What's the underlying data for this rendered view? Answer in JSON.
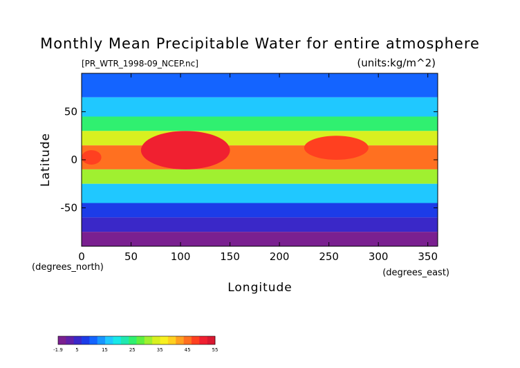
{
  "chart_data": {
    "type": "heatmap",
    "title": "Monthly Mean Precipitable Water for entire atmosphere",
    "subtitle_left": "[PR_WTR_1998-09_NCEP.nc]",
    "subtitle_right": "(units:kg/m^2)",
    "xlabel": "Longitude",
    "ylabel": "Latitude",
    "x_unit_label": "(degrees_east)",
    "y_unit_label": "(degrees_north)",
    "xlim": [
      0,
      360
    ],
    "ylim": [
      -90,
      90
    ],
    "xticks": [
      "0",
      "50",
      "100",
      "150",
      "200",
      "250",
      "300",
      "350"
    ],
    "xtick_values": [
      0,
      50,
      100,
      150,
      200,
      250,
      300,
      350
    ],
    "yticks": [
      "50",
      "0",
      "-50"
    ],
    "ytick_values": [
      50,
      0,
      -50
    ],
    "colorbar": {
      "min": -1.9,
      "max": 55,
      "labels": [
        "-1.9",
        "5",
        "15",
        "25",
        "35",
        "45",
        "55"
      ],
      "label_values": [
        -1.9,
        5,
        15,
        25,
        35,
        45,
        55
      ],
      "colors": [
        "#7a2090",
        "#6020a8",
        "#3a28c8",
        "#1c3ce8",
        "#1464ff",
        "#1896ff",
        "#20c8ff",
        "#18e8e8",
        "#20e8b0",
        "#30f070",
        "#60f040",
        "#a0f030",
        "#d8f020",
        "#f8f020",
        "#ffd020",
        "#ffa020",
        "#ff7020",
        "#ff4020",
        "#f02030",
        "#d81830"
      ]
    },
    "zones": [
      {
        "lat": [
          65,
          90
        ],
        "value": 10
      },
      {
        "lat": [
          45,
          65
        ],
        "value": 17
      },
      {
        "lat": [
          30,
          45
        ],
        "value": 25
      },
      {
        "lat": [
          15,
          30
        ],
        "value": 35
      },
      {
        "lat": [
          -10,
          15
        ],
        "value": 44
      },
      {
        "lat": [
          -25,
          -10
        ],
        "value": 30
      },
      {
        "lat": [
          -45,
          -25
        ],
        "value": 17
      },
      {
        "lat": [
          -60,
          -45
        ],
        "value": 9
      },
      {
        "lat": [
          -75,
          -60
        ],
        "value": 4
      },
      {
        "lat": [
          -90,
          -75
        ],
        "value": 0
      }
    ],
    "high_regions": [
      {
        "lon": [
          60,
          150
        ],
        "lat": [
          -10,
          30
        ],
        "value": 50
      },
      {
        "lon": [
          225,
          290
        ],
        "lat": [
          0,
          25
        ],
        "value": 48
      },
      {
        "lon": [
          0,
          20
        ],
        "lat": [
          -5,
          10
        ],
        "value": 47
      }
    ]
  }
}
